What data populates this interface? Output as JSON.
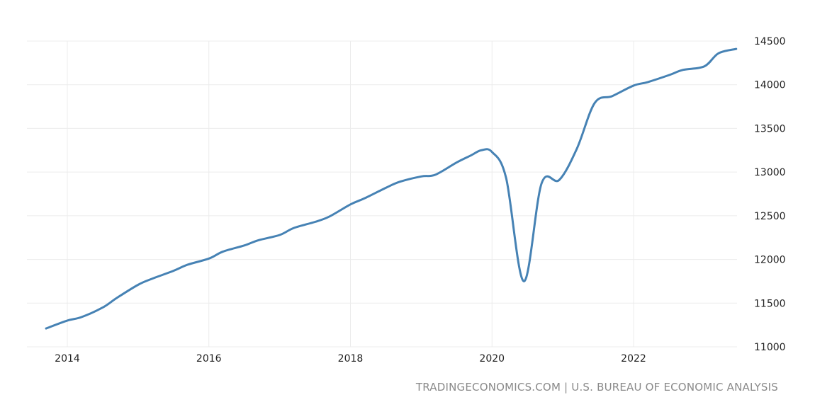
{
  "source": "TRADINGECONOMICS.COM | U.S. BUREAU OF ECONOMIC ANALYSIS",
  "colors": {
    "series": "#4682b4",
    "grid": "#ececec",
    "text": "#222222",
    "source": "#8a8a8a"
  },
  "chart_data": {
    "type": "line",
    "title": "",
    "xlabel": "",
    "ylabel": "",
    "x_ticks": [
      "2014",
      "2016",
      "2018",
      "2020",
      "2022"
    ],
    "y_ticks": [
      "11000",
      "11500",
      "12000",
      "12500",
      "13000",
      "13500",
      "14000",
      "14500"
    ],
    "ylim": [
      11000,
      14500
    ],
    "xlim": [
      2013.4,
      2023.8
    ],
    "y_axis_position": "right",
    "grid": true,
    "legend": "none",
    "series": [
      {
        "x": [
          2013.7,
          2014.0,
          2014.2,
          2014.5,
          2014.7,
          2015.0,
          2015.2,
          2015.5,
          2015.7,
          2016.0,
          2016.2,
          2016.5,
          2016.7,
          2017.0,
          2017.2,
          2017.5,
          2017.7,
          2018.0,
          2018.2,
          2018.5,
          2018.7,
          2019.0,
          2019.2,
          2019.5,
          2019.7,
          2019.85,
          2020.0,
          2020.2,
          2020.45,
          2020.7,
          2020.95,
          2021.2,
          2021.45,
          2021.7,
          2022.0,
          2022.2,
          2022.5,
          2022.7,
          2023.0,
          2023.2,
          2023.45
        ],
        "values": [
          11210,
          11300,
          11340,
          11450,
          11560,
          11710,
          11780,
          11870,
          11940,
          12010,
          12090,
          12160,
          12220,
          12280,
          12360,
          12430,
          12490,
          12630,
          12700,
          12820,
          12890,
          12950,
          12970,
          13110,
          13190,
          13250,
          13230,
          12930,
          11750,
          12870,
          12910,
          13270,
          13790,
          13870,
          13990,
          14030,
          14110,
          14170,
          14210,
          14360,
          14410
        ]
      }
    ]
  }
}
